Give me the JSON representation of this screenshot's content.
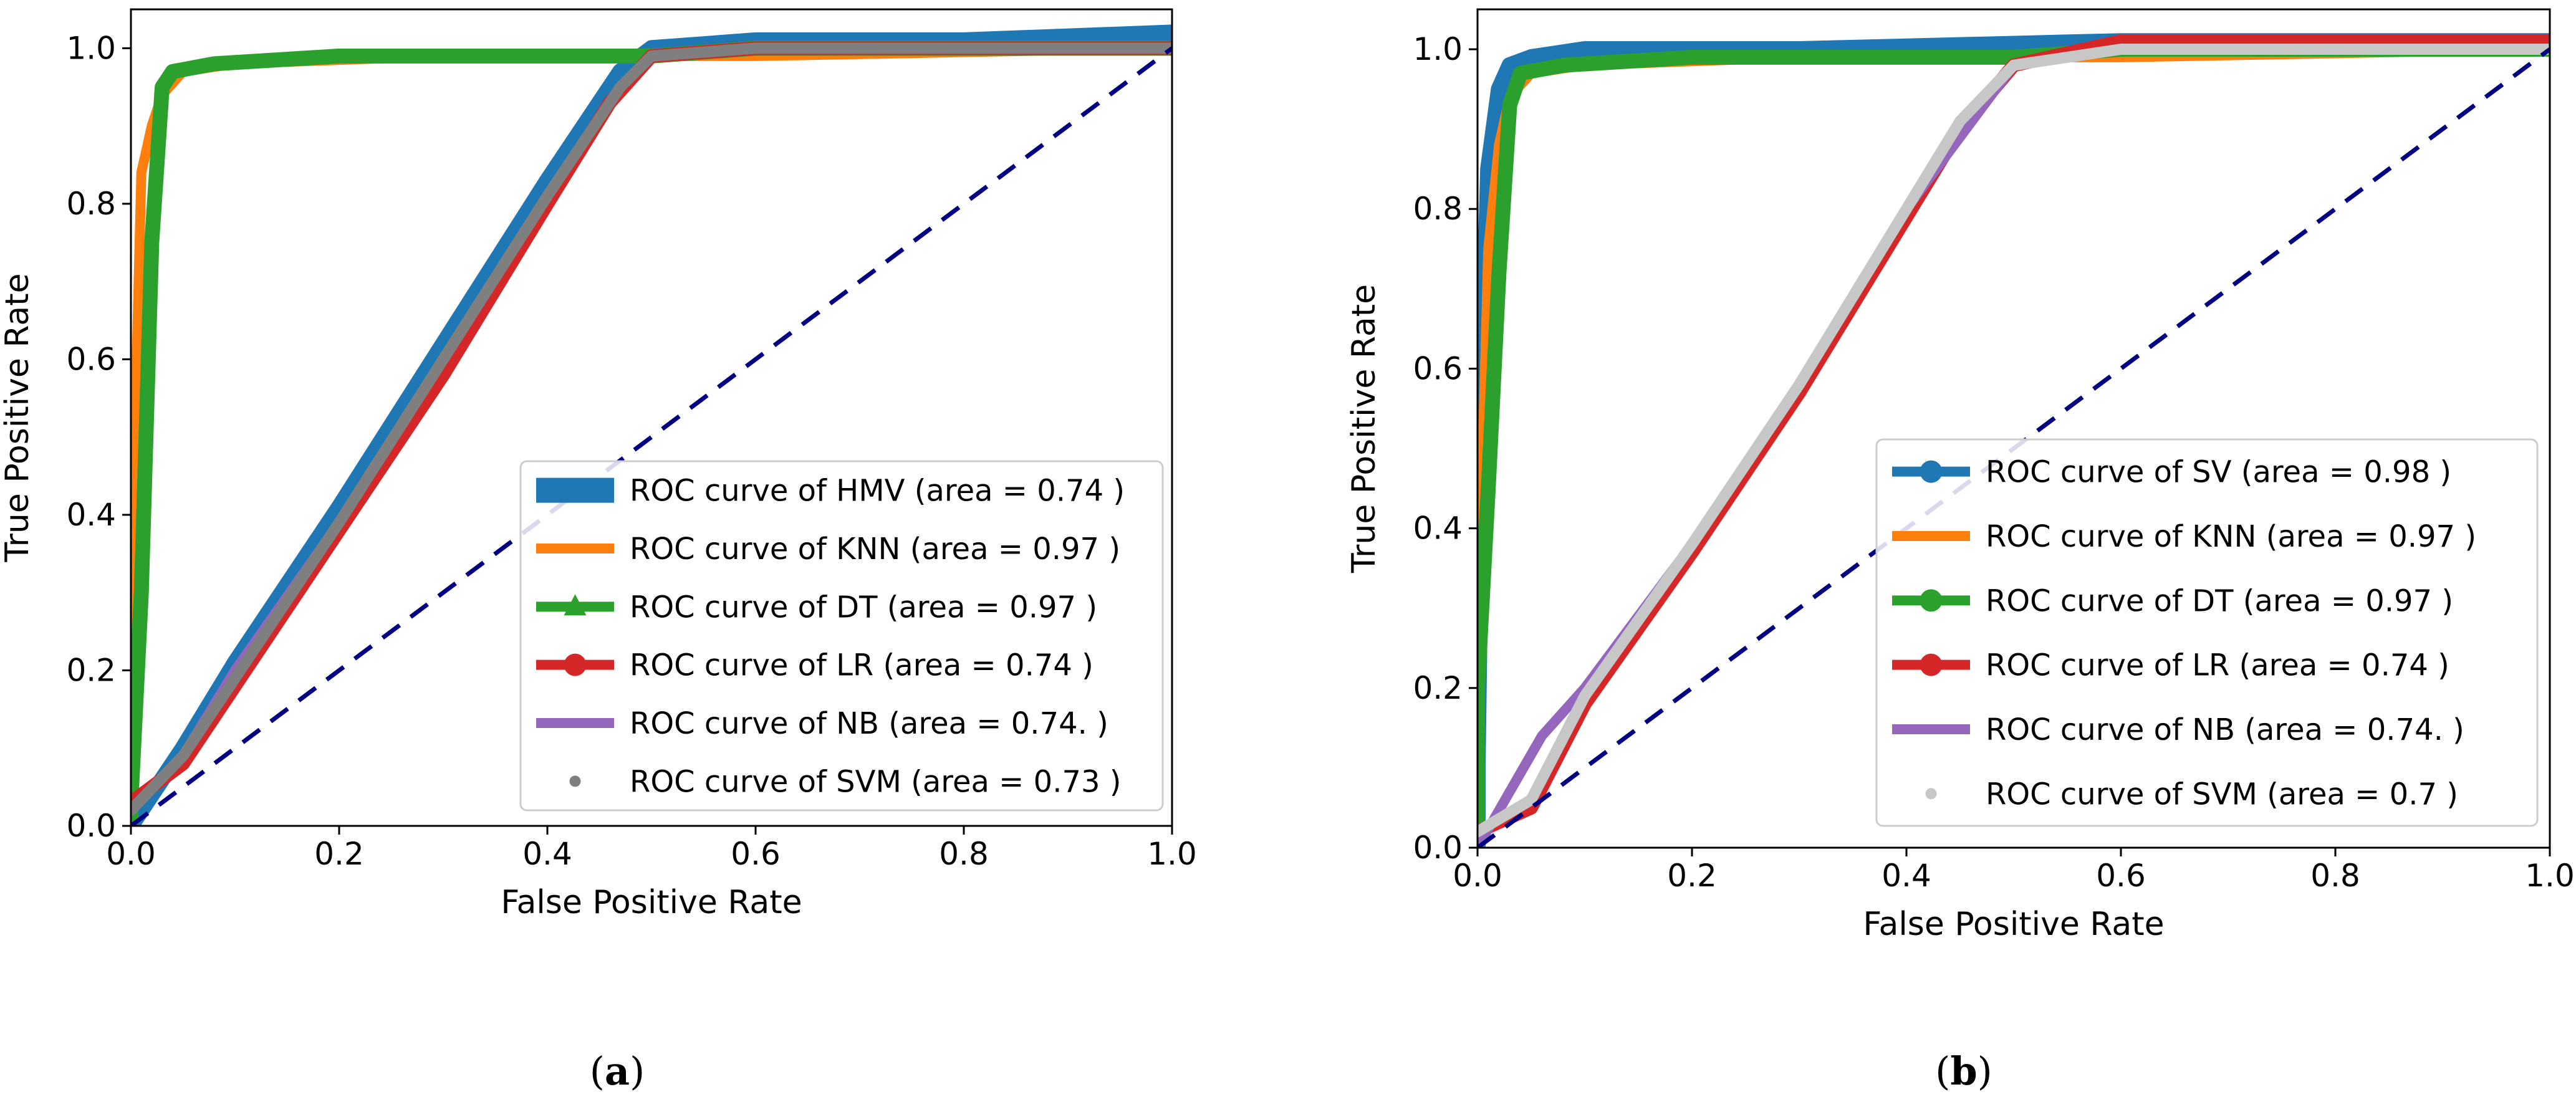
{
  "figure": {
    "panel_a_label": "a",
    "panel_b_label": "b",
    "colors": {
      "blue": "#1f77b4",
      "orange": "#ff7f0e",
      "green": "#2ca02c",
      "red": "#d62728",
      "purple": "#9467bd",
      "gray": "#7f7f7f",
      "lightgray": "#c7c7c7",
      "navy": "#000080"
    }
  },
  "chart_data": [
    {
      "type": "line",
      "panel": "a",
      "title": "",
      "xlabel": "False Positive Rate",
      "ylabel": "True Positive Rate",
      "xlim": [
        0.0,
        1.0
      ],
      "ylim": [
        0.0,
        1.05
      ],
      "xticks": [
        "0.0",
        "0.2",
        "0.4",
        "0.6",
        "0.8",
        "1.0"
      ],
      "yticks": [
        "0.0",
        "0.2",
        "0.4",
        "0.6",
        "0.8",
        "1.0"
      ],
      "legend_position": "lower-right",
      "series": [
        {
          "name": "HMV",
          "legend": "ROC curve of HMV (area = 0.74  )",
          "color": "blue",
          "marker": "none",
          "x": [
            0.0,
            0.05,
            0.1,
            0.2,
            0.3,
            0.4,
            0.47,
            0.5,
            0.6,
            0.8,
            1.0
          ],
          "y": [
            0.0,
            0.1,
            0.21,
            0.41,
            0.62,
            0.83,
            0.97,
            1.0,
            1.01,
            1.01,
            1.02
          ]
        },
        {
          "name": "KNN",
          "legend": "ROC curve of KNN (area = 0.97  )",
          "color": "orange",
          "marker": "none",
          "x": [
            0.0,
            0.0,
            0.01,
            0.02,
            0.03,
            0.05,
            0.1,
            0.3,
            0.6,
            1.0
          ],
          "y": [
            0.0,
            0.3,
            0.84,
            0.9,
            0.94,
            0.97,
            0.98,
            0.99,
            0.99,
            1.0
          ]
        },
        {
          "name": "DT",
          "legend": "ROC curve of DT (area = 0.97  )",
          "color": "green",
          "marker": "triangle",
          "x": [
            0.0,
            0.0,
            0.01,
            0.02,
            0.03,
            0.04,
            0.08,
            0.2,
            0.5,
            0.6,
            1.0
          ],
          "y": [
            0.0,
            0.03,
            0.3,
            0.75,
            0.95,
            0.97,
            0.98,
            0.99,
            0.99,
            1.0,
            1.0
          ]
        },
        {
          "name": "LR",
          "legend": "ROC curve of LR (area = 0.74  )",
          "color": "red",
          "marker": "circle",
          "x": [
            0.0,
            0.05,
            0.1,
            0.2,
            0.3,
            0.4,
            0.46,
            0.5,
            0.6,
            0.8,
            1.0
          ],
          "y": [
            0.03,
            0.08,
            0.18,
            0.38,
            0.58,
            0.8,
            0.93,
            0.99,
            1.0,
            1.0,
            1.0
          ]
        },
        {
          "name": "NB",
          "legend": "ROC curve of NB (area = 0.74. )",
          "color": "purple",
          "marker": "none",
          "x": [
            0.0,
            0.05,
            0.1,
            0.2,
            0.3,
            0.4,
            0.47,
            0.5,
            0.6,
            0.8,
            1.0
          ],
          "y": [
            0.02,
            0.09,
            0.2,
            0.39,
            0.6,
            0.81,
            0.95,
            0.99,
            1.0,
            1.0,
            1.0
          ]
        },
        {
          "name": "SVM",
          "legend": "ROC curve of SVM (area = 0.73  )",
          "color": "gray",
          "marker": "dot",
          "x": [
            0.0,
            0.05,
            0.1,
            0.2,
            0.3,
            0.4,
            0.47,
            0.5,
            0.6,
            0.8,
            1.0
          ],
          "y": [
            0.02,
            0.09,
            0.19,
            0.39,
            0.6,
            0.81,
            0.95,
            0.99,
            1.0,
            1.0,
            1.0
          ]
        },
        {
          "name": "chance",
          "legend": "",
          "color": "navy",
          "marker": "none",
          "dashed": true,
          "x": [
            0.0,
            1.0
          ],
          "y": [
            0.0,
            1.0
          ]
        }
      ]
    },
    {
      "type": "line",
      "panel": "b",
      "title": "",
      "xlabel": "False Positive Rate",
      "ylabel": "True Positive Rate",
      "xlim": [
        0.0,
        1.0
      ],
      "ylim": [
        0.0,
        1.05
      ],
      "xticks": [
        "0.0",
        "0.2",
        "0.4",
        "0.6",
        "0.8",
        "1.0"
      ],
      "yticks": [
        "0.0",
        "0.2",
        "0.4",
        "0.6",
        "0.8",
        "1.0"
      ],
      "legend_position": "lower-right",
      "series": [
        {
          "name": "SV",
          "legend": "ROC curve of SV (area = 0.98  )",
          "color": "blue",
          "marker": "circle",
          "x": [
            0.0,
            0.0,
            0.005,
            0.01,
            0.02,
            0.03,
            0.05,
            0.1,
            0.3,
            0.6,
            1.0
          ],
          "y": [
            0.0,
            0.1,
            0.6,
            0.85,
            0.95,
            0.98,
            0.99,
            1.0,
            1.0,
            1.01,
            1.01
          ]
        },
        {
          "name": "KNN",
          "legend": "ROC curve of KNN (area = 0.97  )",
          "color": "orange",
          "marker": "none",
          "x": [
            0.0,
            0.0,
            0.01,
            0.02,
            0.03,
            0.05,
            0.1,
            0.3,
            0.6,
            1.0
          ],
          "y": [
            0.0,
            0.25,
            0.75,
            0.88,
            0.94,
            0.97,
            0.98,
            0.99,
            0.99,
            1.0
          ]
        },
        {
          "name": "DT",
          "legend": "ROC curve of DT (area = 0.97  )",
          "color": "green",
          "marker": "circle",
          "x": [
            0.0,
            0.0,
            0.01,
            0.02,
            0.03,
            0.04,
            0.08,
            0.2,
            0.5,
            0.6,
            1.0
          ],
          "y": [
            0.0,
            0.2,
            0.45,
            0.72,
            0.93,
            0.97,
            0.98,
            0.99,
            0.99,
            1.0,
            1.0
          ]
        },
        {
          "name": "LR",
          "legend": "ROC curve of LR (area = 0.74  )",
          "color": "red",
          "marker": "circle",
          "x": [
            0.0,
            0.05,
            0.1,
            0.2,
            0.3,
            0.4,
            0.45,
            0.5,
            0.6,
            0.8,
            1.0
          ],
          "y": [
            0.02,
            0.05,
            0.18,
            0.37,
            0.57,
            0.79,
            0.9,
            0.98,
            1.01,
            1.01,
            1.01
          ]
        },
        {
          "name": "NB",
          "legend": "ROC curve of NB (area = 0.74. )",
          "color": "purple",
          "marker": "none",
          "x": [
            0.0,
            0.03,
            0.06,
            0.1,
            0.2,
            0.3,
            0.4,
            0.5,
            0.6,
            1.0
          ],
          "y": [
            0.0,
            0.07,
            0.14,
            0.2,
            0.38,
            0.58,
            0.8,
            0.98,
            1.0,
            1.0
          ]
        },
        {
          "name": "SVM",
          "legend": "ROC curve of SVM (area = 0.7   )",
          "color": "lightgray",
          "marker": "dot",
          "x": [
            0.0,
            0.05,
            0.1,
            0.2,
            0.3,
            0.4,
            0.45,
            0.5,
            0.6,
            0.8,
            1.0
          ],
          "y": [
            0.02,
            0.06,
            0.19,
            0.38,
            0.58,
            0.8,
            0.91,
            0.98,
            1.0,
            1.0,
            1.0
          ]
        },
        {
          "name": "chance",
          "legend": "",
          "color": "navy",
          "marker": "none",
          "dashed": true,
          "x": [
            0.0,
            1.0
          ],
          "y": [
            0.0,
            1.0
          ]
        }
      ]
    }
  ]
}
